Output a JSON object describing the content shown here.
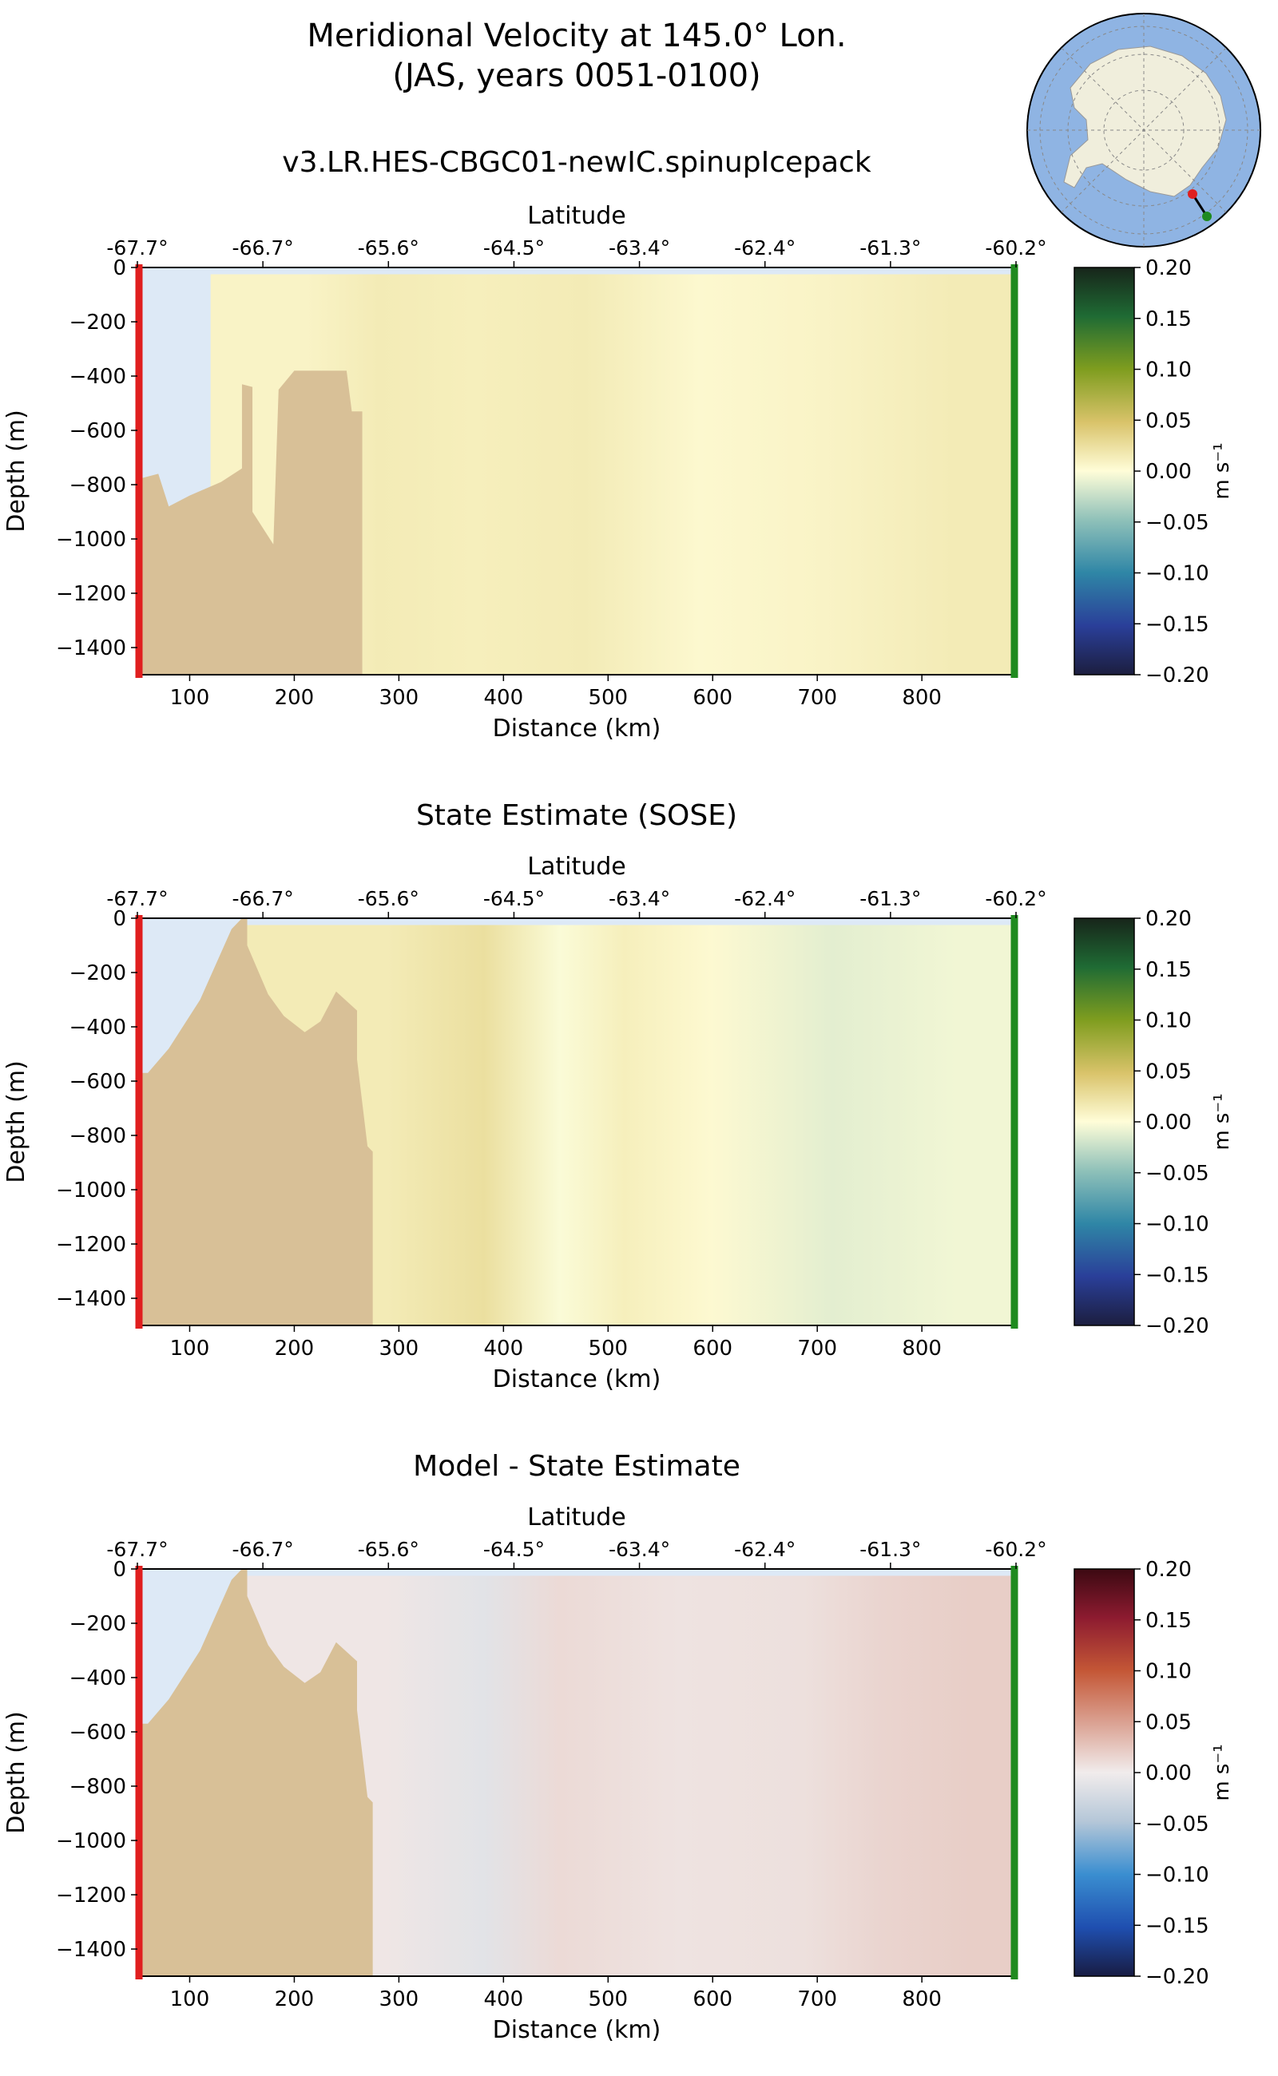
{
  "figure": {
    "title_line1": "Meridional Velocity at 145.0° Lon.",
    "title_line2": "(JAS, years 0051-0100)",
    "colors": {
      "land": "#d8c097",
      "sea_ice_gap": "#dde9f6",
      "start_marker": "#e01f1f",
      "end_marker": "#1f8a1f",
      "map_ocean": "#8fb4e3",
      "map_land": "#f0eedc"
    }
  },
  "chart_data": [
    {
      "type": "heatmap",
      "title": "v3.LR.HES-CBGC01-newIC.spinupIcepack",
      "xlabel": "Distance (km)",
      "ylabel": "Depth (m)",
      "top_axis_label": "Latitude",
      "xlim": [
        50,
        890
      ],
      "ylim": [
        -1500,
        0
      ],
      "x_ticks": [
        100,
        200,
        300,
        400,
        500,
        600,
        700,
        800
      ],
      "y_ticks": [
        0,
        -200,
        -400,
        -600,
        -800,
        -1000,
        -1200,
        -1400
      ],
      "latitude_ticks": [
        "-67.7°",
        "-66.7°",
        "-65.6°",
        "-64.5°",
        "-63.4°",
        "-62.4°",
        "-61.3°",
        "-60.2°"
      ],
      "colorbar": {
        "cmap": "delta_rev",
        "vmin": -0.2,
        "vmax": 0.2,
        "ticks": [
          0.2,
          0.15,
          0.1,
          0.05,
          0.0,
          -0.05,
          -0.1,
          -0.15,
          -0.2
        ],
        "label": "m s⁻¹"
      },
      "bathymetry": [
        [
          50,
          -780
        ],
        [
          70,
          -760
        ],
        [
          80,
          -880
        ],
        [
          100,
          -840
        ],
        [
          130,
          -790
        ],
        [
          150,
          -740
        ],
        [
          150,
          -430
        ],
        [
          160,
          -440
        ],
        [
          160,
          -900
        ],
        [
          180,
          -1020
        ],
        [
          185,
          -450
        ],
        [
          200,
          -380
        ],
        [
          250,
          -380
        ],
        [
          255,
          -530
        ],
        [
          265,
          -530
        ]
      ],
      "field": [
        {
          "x_start": 120,
          "x_end": 180,
          "value": 0.008
        },
        {
          "x_start": 180,
          "x_end": 270,
          "value": 0.015
        },
        {
          "x_start": 270,
          "x_end": 380,
          "value": 0.012
        },
        {
          "x_start": 380,
          "x_end": 500,
          "value": 0.015
        },
        {
          "x_start": 500,
          "x_end": 620,
          "value": 0.004
        },
        {
          "x_start": 620,
          "x_end": 760,
          "value": 0.008
        },
        {
          "x_start": 760,
          "x_end": 890,
          "value": 0.015
        }
      ]
    },
    {
      "type": "heatmap",
      "title": "State Estimate (SOSE)",
      "xlabel": "Distance (km)",
      "ylabel": "Depth (m)",
      "top_axis_label": "Latitude",
      "xlim": [
        50,
        890
      ],
      "ylim": [
        -1500,
        0
      ],
      "x_ticks": [
        100,
        200,
        300,
        400,
        500,
        600,
        700,
        800
      ],
      "y_ticks": [
        0,
        -200,
        -400,
        -600,
        -800,
        -1000,
        -1200,
        -1400
      ],
      "latitude_ticks": [
        "-67.7°",
        "-66.7°",
        "-65.6°",
        "-64.5°",
        "-63.4°",
        "-62.4°",
        "-61.3°",
        "-60.2°"
      ],
      "colorbar": {
        "cmap": "delta_rev",
        "vmin": -0.2,
        "vmax": 0.2,
        "ticks": [
          0.2,
          0.15,
          0.1,
          0.05,
          0.0,
          -0.05,
          -0.1,
          -0.15,
          -0.2
        ],
        "label": "m s⁻¹"
      },
      "bathymetry": [
        [
          50,
          -570
        ],
        [
          60,
          -570
        ],
        [
          80,
          -480
        ],
        [
          110,
          -300
        ],
        [
          140,
          -40
        ],
        [
          150,
          0
        ],
        [
          155,
          0
        ],
        [
          155,
          -100
        ],
        [
          175,
          -280
        ],
        [
          190,
          -360
        ],
        [
          210,
          -420
        ],
        [
          225,
          -380
        ],
        [
          240,
          -270
        ],
        [
          260,
          -340
        ],
        [
          260,
          -520
        ],
        [
          270,
          -840
        ],
        [
          275,
          -860
        ],
        [
          275,
          -1500
        ]
      ],
      "field": [
        {
          "x_start": 150,
          "x_end": 265,
          "value": 0.015
        },
        {
          "x_start": 265,
          "x_end": 360,
          "value": 0.025
        },
        {
          "x_start": 360,
          "x_end": 430,
          "value": -0.002
        },
        {
          "x_start": 430,
          "x_end": 500,
          "value": 0.012
        },
        {
          "x_start": 500,
          "x_end": 620,
          "value": 0.003
        },
        {
          "x_start": 620,
          "x_end": 760,
          "value": -0.012
        },
        {
          "x_start": 760,
          "x_end": 890,
          "value": -0.006
        }
      ]
    },
    {
      "type": "heatmap",
      "title": "Model - State Estimate",
      "xlabel": "Distance (km)",
      "ylabel": "Depth (m)",
      "top_axis_label": "Latitude",
      "xlim": [
        50,
        890
      ],
      "ylim": [
        -1500,
        0
      ],
      "x_ticks": [
        100,
        200,
        300,
        400,
        500,
        600,
        700,
        800
      ],
      "y_ticks": [
        0,
        -200,
        -400,
        -600,
        -800,
        -1000,
        -1200,
        -1400
      ],
      "latitude_ticks": [
        "-67.7°",
        "-66.7°",
        "-65.6°",
        "-64.5°",
        "-63.4°",
        "-62.4°",
        "-61.3°",
        "-60.2°"
      ],
      "colorbar": {
        "cmap": "balance",
        "vmin": -0.2,
        "vmax": 0.2,
        "ticks": [
          0.2,
          0.15,
          0.1,
          0.05,
          0.0,
          -0.05,
          -0.1,
          -0.15,
          -0.2
        ],
        "label": "m s⁻¹"
      },
      "bathymetry": [
        [
          50,
          -570
        ],
        [
          60,
          -570
        ],
        [
          80,
          -480
        ],
        [
          110,
          -300
        ],
        [
          140,
          -40
        ],
        [
          150,
          0
        ],
        [
          155,
          0
        ],
        [
          155,
          -100
        ],
        [
          175,
          -280
        ],
        [
          190,
          -360
        ],
        [
          210,
          -420
        ],
        [
          225,
          -380
        ],
        [
          240,
          -270
        ],
        [
          260,
          -340
        ],
        [
          260,
          -520
        ],
        [
          270,
          -840
        ],
        [
          275,
          -860
        ],
        [
          275,
          -1500
        ]
      ],
      "field": [
        {
          "x_start": 150,
          "x_end": 265,
          "value": 0.004
        },
        {
          "x_start": 265,
          "x_end": 360,
          "value": -0.012
        },
        {
          "x_start": 360,
          "x_end": 430,
          "value": 0.012
        },
        {
          "x_start": 430,
          "x_end": 620,
          "value": 0.006
        },
        {
          "x_start": 620,
          "x_end": 700,
          "value": 0.008
        },
        {
          "x_start": 700,
          "x_end": 790,
          "value": 0.016
        },
        {
          "x_start": 790,
          "x_end": 890,
          "value": 0.02
        }
      ]
    }
  ]
}
